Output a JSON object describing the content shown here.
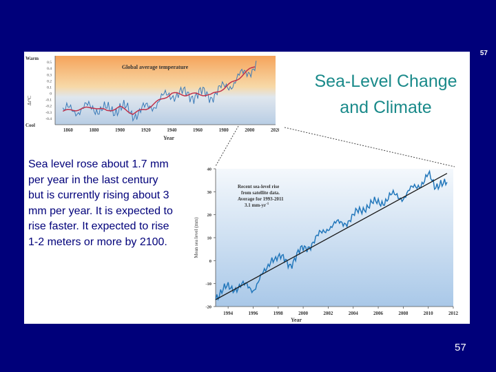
{
  "slide": {
    "number_top": "57",
    "number_bottom": "57",
    "title_line1": "Sea-Level Change",
    "title_line2": "and Climate",
    "body": "Sea level rose about 1.7 mm per year in the last century but is currently rising about 3 mm per year.  It is expected to rise faster.  It expected to rise 1-2 meters or more by 2100."
  },
  "colors": {
    "background": "#00007a",
    "title": "#1a8a8a",
    "body_text": "#00007a",
    "temp_series": "#3a7ab8",
    "temp_smooth": "#c0304a",
    "sea_series": "#2277bb",
    "trend": "#1a1a1a"
  },
  "chart_data": [
    {
      "type": "line",
      "title": "Global average temperature",
      "xlabel": "Year",
      "ylabel": "",
      "y_top_label": "Warm",
      "y_bottom_label": "Cool",
      "y_unit_label": "Δt°C",
      "xlim": [
        1850,
        2020
      ],
      "ylim": [
        -0.5,
        0.6
      ],
      "xticks": [
        "1860",
        "1880",
        "1900",
        "1920",
        "1940",
        "1960",
        "1980",
        "2000",
        "2020"
      ],
      "yticks": [
        "0.5",
        "0.4",
        "0.3",
        "0.2",
        "0.1",
        "0",
        "-0.1",
        "-0.2",
        "-0.3",
        "-0.4"
      ],
      "smoothed": {
        "x": [
          1850,
          1870,
          1880,
          1890,
          1900,
          1910,
          1920,
          1930,
          1940,
          1950,
          1960,
          1970,
          1980,
          1990,
          2000,
          2005
        ],
        "values": [
          -0.3,
          -0.25,
          -0.22,
          -0.28,
          -0.22,
          -0.32,
          -0.25,
          -0.12,
          0.0,
          -0.02,
          -0.01,
          -0.03,
          0.08,
          0.22,
          0.38,
          0.45
        ]
      }
    },
    {
      "type": "line",
      "title": "",
      "annotation_line1": "Recent sea-level rise",
      "annotation_line2": "from satellite data.",
      "annotation_line3": "Average for 1993-2011",
      "annotation_line4": "3.1 mm-yr",
      "xlabel": "Year",
      "ylabel": "Mean sea level (mm)",
      "xlim": [
        1993,
        2012
      ],
      "ylim": [
        -20,
        40
      ],
      "xticks": [
        "1994",
        "1996",
        "1998",
        "2000",
        "2002",
        "2004",
        "2006",
        "2008",
        "2010",
        "2012"
      ],
      "yticks": [
        "40",
        "30",
        "20",
        "10",
        "0",
        "-10",
        "-20"
      ],
      "trend": {
        "x": [
          1993,
          2011.5
        ],
        "y": [
          -17,
          38
        ]
      },
      "anchors": {
        "x": [
          1993,
          1994,
          1995,
          1996,
          1997,
          1997.5,
          1998,
          1999,
          2000,
          2001,
          2002,
          2003,
          2004,
          2005,
          2006,
          2007,
          2008,
          2009,
          2010,
          2010.5,
          2011,
          2011.5
        ],
        "y": [
          -15,
          -12,
          -11,
          -12,
          -5,
          2,
          1,
          -1,
          5,
          9,
          15,
          16,
          19,
          24,
          25,
          28,
          28,
          32,
          37,
          32,
          35,
          33
        ]
      }
    }
  ]
}
